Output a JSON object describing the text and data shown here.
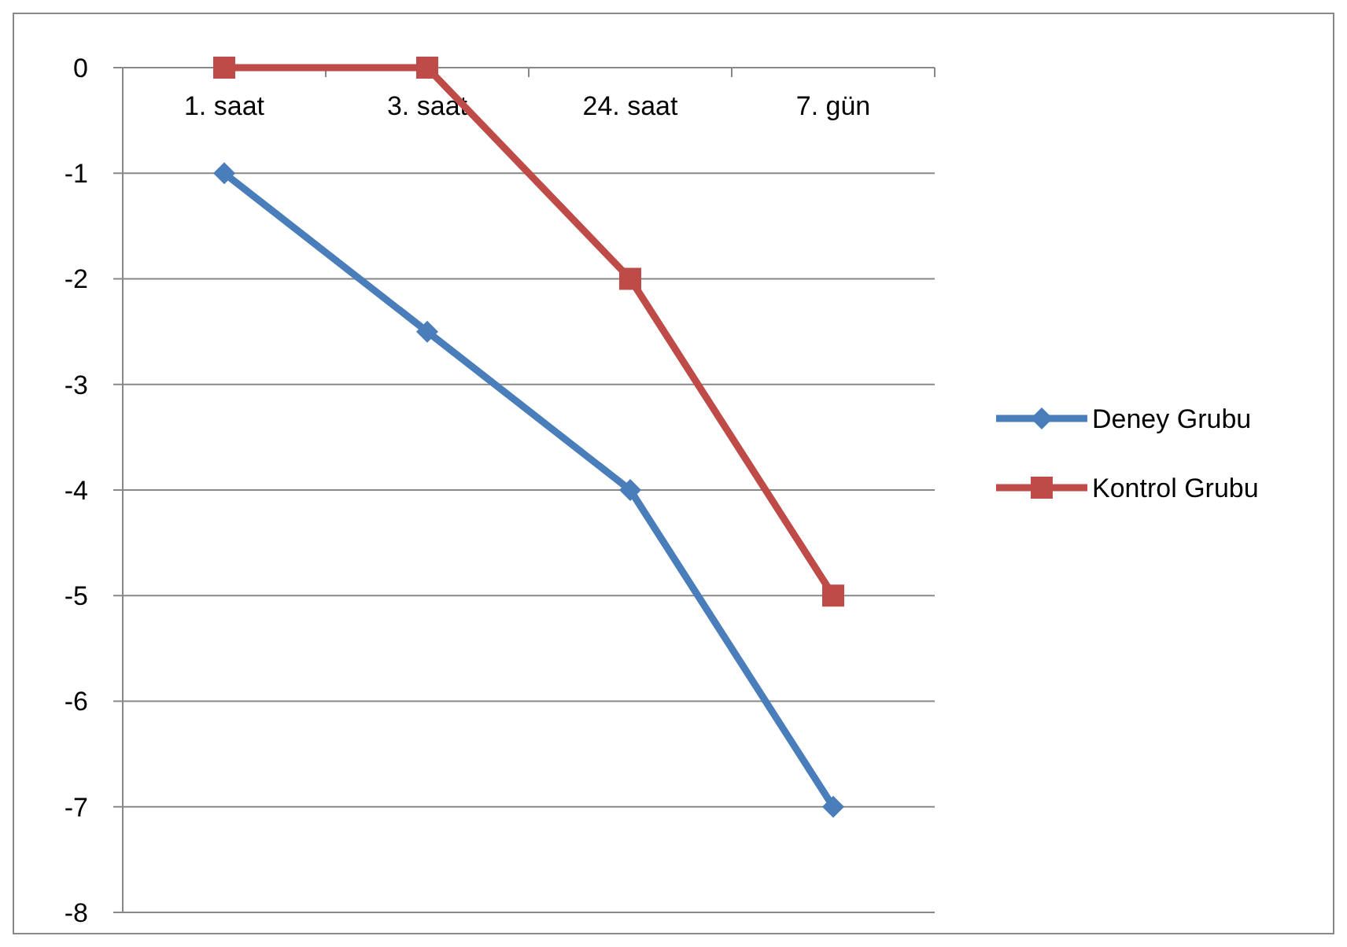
{
  "chart_data": {
    "type": "line",
    "categories": [
      "1. saat",
      "3. saat",
      "24. saat",
      "7. gün"
    ],
    "series": [
      {
        "name": "Deney Grubu",
        "color": "#4a7ebb",
        "values": [
          -1,
          -2.5,
          -4,
          -7
        ],
        "marker": "diamond"
      },
      {
        "name": "Kontrol Grubu",
        "color": "#be4b48",
        "values": [
          0,
          0,
          -2,
          -5
        ],
        "marker": "square"
      }
    ],
    "ylim": [
      -8,
      0
    ],
    "yticks": [
      0,
      -1,
      -2,
      -3,
      -4,
      -5,
      -6,
      -7,
      -8
    ],
    "grid": "y",
    "legend": "right",
    "line_style": "solid"
  }
}
